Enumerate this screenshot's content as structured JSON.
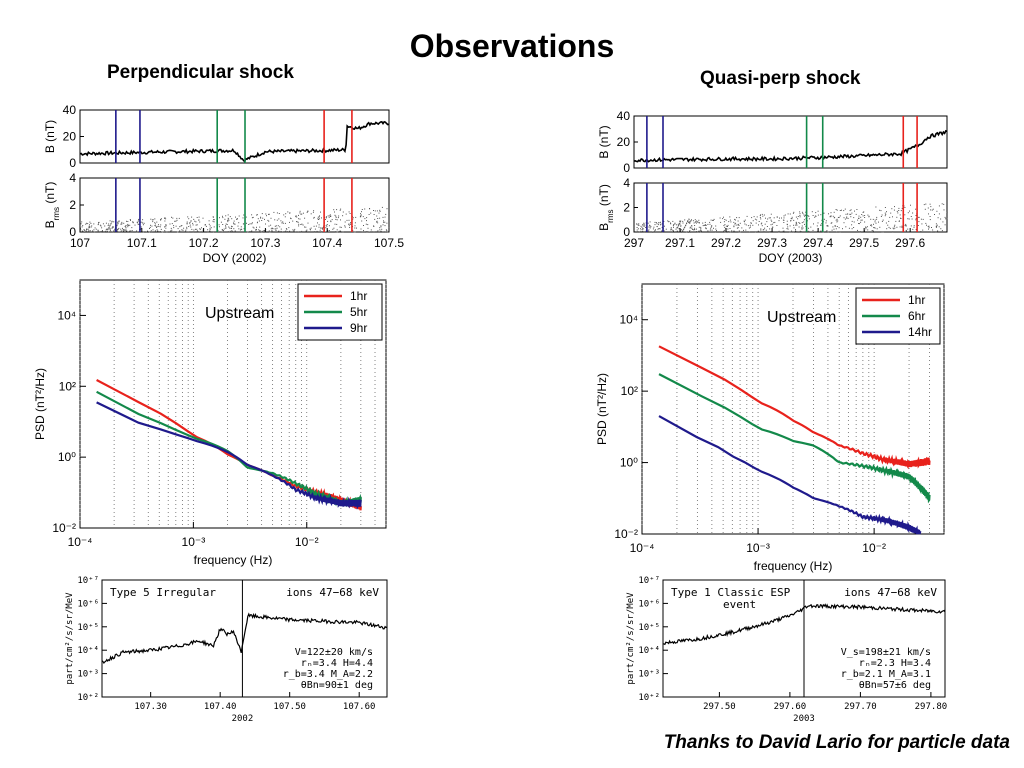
{
  "page": {
    "title": "Observations",
    "left_subtitle": "Perpendicular shock",
    "right_subtitle": "Quasi-perp shock",
    "credit": "Thanks to David Lario for particle data"
  },
  "colors": {
    "red": "#e8221c",
    "green": "#13894a",
    "blue": "#1f1a8c",
    "black": "#000000"
  },
  "chart_data": [
    {
      "id": "left-timeseries",
      "type": "line",
      "xlabel": "DOY (2002)",
      "xlim": [
        107,
        107.5
      ],
      "xticks": [
        "107",
        "107.1",
        "107.2",
        "107.3",
        "107.4",
        "107.5"
      ],
      "panels": [
        {
          "ylabel": "B (nT)",
          "ylim": [
            0,
            40
          ],
          "yticks": [
            "0",
            "20",
            "40"
          ],
          "series": [
            {
              "type": "line",
              "color": "black",
              "x": [
                107.0,
                107.05,
                107.1,
                107.15,
                107.2,
                107.25,
                107.265,
                107.3,
                107.35,
                107.4,
                107.43,
                107.432,
                107.45,
                107.47,
                107.5
              ],
              "y": [
                7,
                7.5,
                8,
                8.5,
                9,
                9.5,
                2,
                8.5,
                9,
                9.5,
                10,
                28,
                26,
                30,
                30
              ]
            }
          ]
        },
        {
          "ylabel": "B_rms (nT)",
          "ylim": [
            0,
            4
          ],
          "yticks": [
            "0",
            "2",
            "4"
          ],
          "series": [
            {
              "type": "scatter",
              "color": "black",
              "x": [
                107.0,
                107.5
              ],
              "y": [
                0.5,
                1.5
              ]
            }
          ]
        }
      ],
      "vlines": [
        {
          "x": 107.058,
          "color": "blue"
        },
        {
          "x": 107.097,
          "color": "blue"
        },
        {
          "x": 107.222,
          "color": "green"
        },
        {
          "x": 107.267,
          "color": "green"
        },
        {
          "x": 107.395,
          "color": "red"
        },
        {
          "x": 107.44,
          "color": "red"
        }
      ]
    },
    {
      "id": "right-timeseries",
      "type": "line",
      "xlabel": "DOY (2003)",
      "xlim": [
        297,
        297.68
      ],
      "xticks": [
        "297",
        "297.1",
        "297.2",
        "297.3",
        "297.4",
        "297.5",
        "297.6"
      ],
      "panels": [
        {
          "ylabel": "B (nT)",
          "ylim": [
            0,
            40
          ],
          "yticks": [
            "0",
            "20",
            "40"
          ],
          "series": [
            {
              "type": "line",
              "color": "black",
              "x": [
                297.0,
                297.1,
                297.2,
                297.3,
                297.4,
                297.5,
                297.58,
                297.62,
                297.64,
                297.66,
                297.68
              ],
              "y": [
                6,
                6.5,
                7,
                7,
                8,
                9.5,
                11,
                18,
                24,
                26,
                28
              ]
            }
          ]
        },
        {
          "ylabel": "B_rms (nT)",
          "ylim": [
            0,
            4
          ],
          "yticks": [
            "0",
            "2",
            "4"
          ],
          "series": [
            {
              "type": "scatter",
              "color": "black",
              "x": [
                297.0,
                297.68
              ],
              "y": [
                0.5,
                2
              ]
            }
          ]
        }
      ],
      "vlines": [
        {
          "x": 297.028,
          "color": "blue"
        },
        {
          "x": 297.063,
          "color": "blue"
        },
        {
          "x": 297.375,
          "color": "green"
        },
        {
          "x": 297.41,
          "color": "green"
        },
        {
          "x": 297.585,
          "color": "red"
        },
        {
          "x": 297.615,
          "color": "red"
        }
      ]
    },
    {
      "id": "left-psd",
      "type": "line",
      "annotation": "Upstream",
      "xlabel": "frequency (Hz)",
      "ylabel": "PSD (nT²/Hz)",
      "xscale": "log",
      "yscale": "log",
      "xlim": [
        0.0001,
        0.05
      ],
      "ylim": [
        0.01,
        100000
      ],
      "xticks": [
        "10⁻⁴",
        "10⁻³",
        "10⁻²"
      ],
      "yticks": [
        "10⁻²",
        "10⁰",
        "10²",
        "10⁴"
      ],
      "legend_position": "top-right",
      "series": [
        {
          "name": "1hr",
          "color": "red",
          "x": [
            0.00014,
            0.0003,
            0.0006,
            0.001,
            0.002,
            0.003,
            0.005,
            0.008,
            0.012,
            0.02,
            0.03
          ],
          "y": [
            150,
            40,
            12,
            4,
            1.2,
            0.6,
            0.3,
            0.15,
            0.1,
            0.06,
            0.04
          ]
        },
        {
          "name": "5hr",
          "color": "green",
          "x": [
            0.00014,
            0.0003,
            0.0006,
            0.001,
            0.002,
            0.003,
            0.005,
            0.008,
            0.012,
            0.02,
            0.03
          ],
          "y": [
            70,
            18,
            7,
            3.5,
            1.5,
            0.5,
            0.35,
            0.18,
            0.09,
            0.05,
            0.06
          ]
        },
        {
          "name": "9hr",
          "color": "blue",
          "x": [
            0.00014,
            0.0003,
            0.0006,
            0.001,
            0.002,
            0.003,
            0.005,
            0.008,
            0.012,
            0.02,
            0.03
          ],
          "y": [
            35,
            10,
            5,
            3,
            1.4,
            0.6,
            0.3,
            0.12,
            0.07,
            0.05,
            0.05
          ]
        }
      ]
    },
    {
      "id": "right-psd",
      "type": "line",
      "annotation": "Upstream",
      "xlabel": "frequency (Hz)",
      "ylabel": "PSD (nT²/Hz)",
      "xscale": "log",
      "yscale": "log",
      "xlim": [
        0.0001,
        0.04
      ],
      "ylim": [
        0.01,
        100000
      ],
      "xticks": [
        "10⁻⁴",
        "10⁻³",
        "10⁻²"
      ],
      "yticks": [
        "10⁻²",
        "10⁰",
        "10²",
        "10⁴"
      ],
      "legend_position": "top-right",
      "series": [
        {
          "name": "1hr",
          "color": "red",
          "x": [
            0.00014,
            0.0003,
            0.0006,
            0.001,
            0.002,
            0.003,
            0.005,
            0.008,
            0.012,
            0.02,
            0.03
          ],
          "y": [
            1800,
            500,
            150,
            50,
            15,
            7,
            3,
            1.8,
            1.2,
            0.9,
            1.1
          ]
        },
        {
          "name": "6hr",
          "color": "green",
          "x": [
            0.00014,
            0.0003,
            0.0006,
            0.001,
            0.002,
            0.003,
            0.005,
            0.008,
            0.012,
            0.02,
            0.03
          ],
          "y": [
            300,
            80,
            25,
            9,
            4,
            3,
            1,
            0.8,
            0.6,
            0.4,
            0.1
          ]
        },
        {
          "name": "14hr",
          "color": "blue",
          "x": [
            0.00014,
            0.0003,
            0.0006,
            0.001,
            0.002,
            0.003,
            0.005,
            0.008,
            0.012,
            0.02,
            0.025
          ],
          "y": [
            20,
            5,
            1.5,
            0.6,
            0.2,
            0.1,
            0.06,
            0.03,
            0.025,
            0.015,
            0.01
          ]
        }
      ]
    },
    {
      "id": "left-particles",
      "type": "line",
      "ylabel": "part/cm²/s/sr/MeV",
      "yscale": "log",
      "ylim": [
        100,
        10000000
      ],
      "yticks": [
        "10⁺²",
        "10⁺³",
        "10⁺⁴",
        "10⁺⁵",
        "10⁺⁶",
        "10⁺⁷"
      ],
      "xlim": [
        107.23,
        107.64
      ],
      "xticks": [
        "107.30",
        "107.40",
        "107.50",
        "107.60"
      ],
      "xlabel": "2002",
      "vline": 107.432,
      "label_left": "Type 5 Irregular",
      "label_right": "ions 47−68 keV",
      "params": [
        "V=122±20 km/s",
        "rₙ=3.4   H=4.4",
        "r_b=3.4 M_A=2.2",
        "θBn=90±1 deg"
      ],
      "series": [
        {
          "color": "black",
          "x": [
            107.23,
            107.26,
            107.3,
            107.34,
            107.37,
            107.39,
            107.4,
            107.41,
            107.42,
            107.43,
            107.44,
            107.5,
            107.6,
            107.64
          ],
          "y": [
            3000,
            8000,
            10000,
            15000,
            25000,
            15000,
            80000,
            50000,
            60000,
            8000,
            300000,
            200000,
            150000,
            90000
          ]
        }
      ]
    },
    {
      "id": "right-particles",
      "type": "line",
      "ylabel": "part/cm²/s/sr/MeV",
      "yscale": "log",
      "ylim": [
        100,
        10000000
      ],
      "yticks": [
        "10⁺²",
        "10⁺³",
        "10⁺⁴",
        "10⁺⁵",
        "10⁺⁶",
        "10⁺⁷"
      ],
      "xlim": [
        297.42,
        297.82
      ],
      "xticks": [
        "297.50",
        "297.60",
        "297.70",
        "297.80"
      ],
      "xlabel": "2003",
      "vline": 297.62,
      "label_left": "Type 1 Classic ESP",
      "label_left2": "event",
      "label_right": "ions 47−68 keV",
      "params": [
        "V_s=198±21 km/s",
        "rₙ=2.3   H=3.4",
        "r_b=2.1 M_A=3.1",
        "θBn=57±6 deg"
      ],
      "series": [
        {
          "color": "black",
          "x": [
            297.42,
            297.47,
            297.52,
            297.57,
            297.6,
            297.615,
            297.625,
            297.7,
            297.78,
            297.82
          ],
          "y": [
            20000,
            30000,
            60000,
            150000,
            300000,
            500000,
            800000,
            700000,
            500000,
            450000
          ]
        }
      ]
    }
  ]
}
